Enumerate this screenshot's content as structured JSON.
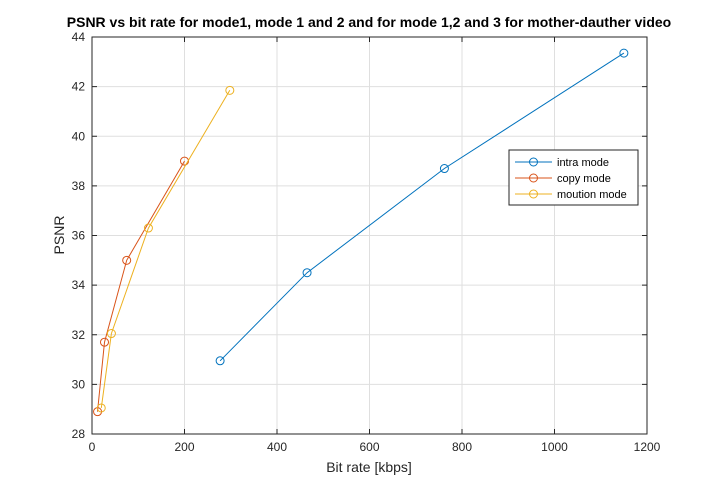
{
  "chart_data": {
    "type": "line",
    "title": "PSNR vs bit rate for mode1, mode 1 and 2 and for mode 1,2 and 3 for mother-dauther video",
    "xlabel": "Bit rate [kbps]",
    "ylabel": "PSNR",
    "xlim": [
      0,
      1200
    ],
    "ylim": [
      28,
      44
    ],
    "xticks": [
      0,
      200,
      400,
      600,
      800,
      1000,
      1200
    ],
    "yticks": [
      28,
      30,
      32,
      34,
      36,
      38,
      40,
      42,
      44
    ],
    "grid": true,
    "legend_position": "right",
    "series": [
      {
        "name": "intra mode",
        "color": "#0072BD",
        "marker": "circle",
        "x": [
          277,
          465,
          762,
          1150
        ],
        "y": [
          30.95,
          34.5,
          38.7,
          43.35
        ]
      },
      {
        "name": "copy mode",
        "color": "#D95319",
        "marker": "circle",
        "x": [
          12,
          27,
          75,
          200
        ],
        "y": [
          28.9,
          31.7,
          35.0,
          39.0
        ]
      },
      {
        "name": "moution mode",
        "color": "#EDB120",
        "marker": "circle",
        "x": [
          20,
          42,
          122,
          298
        ],
        "y": [
          29.05,
          32.05,
          36.3,
          41.85
        ]
      }
    ]
  }
}
